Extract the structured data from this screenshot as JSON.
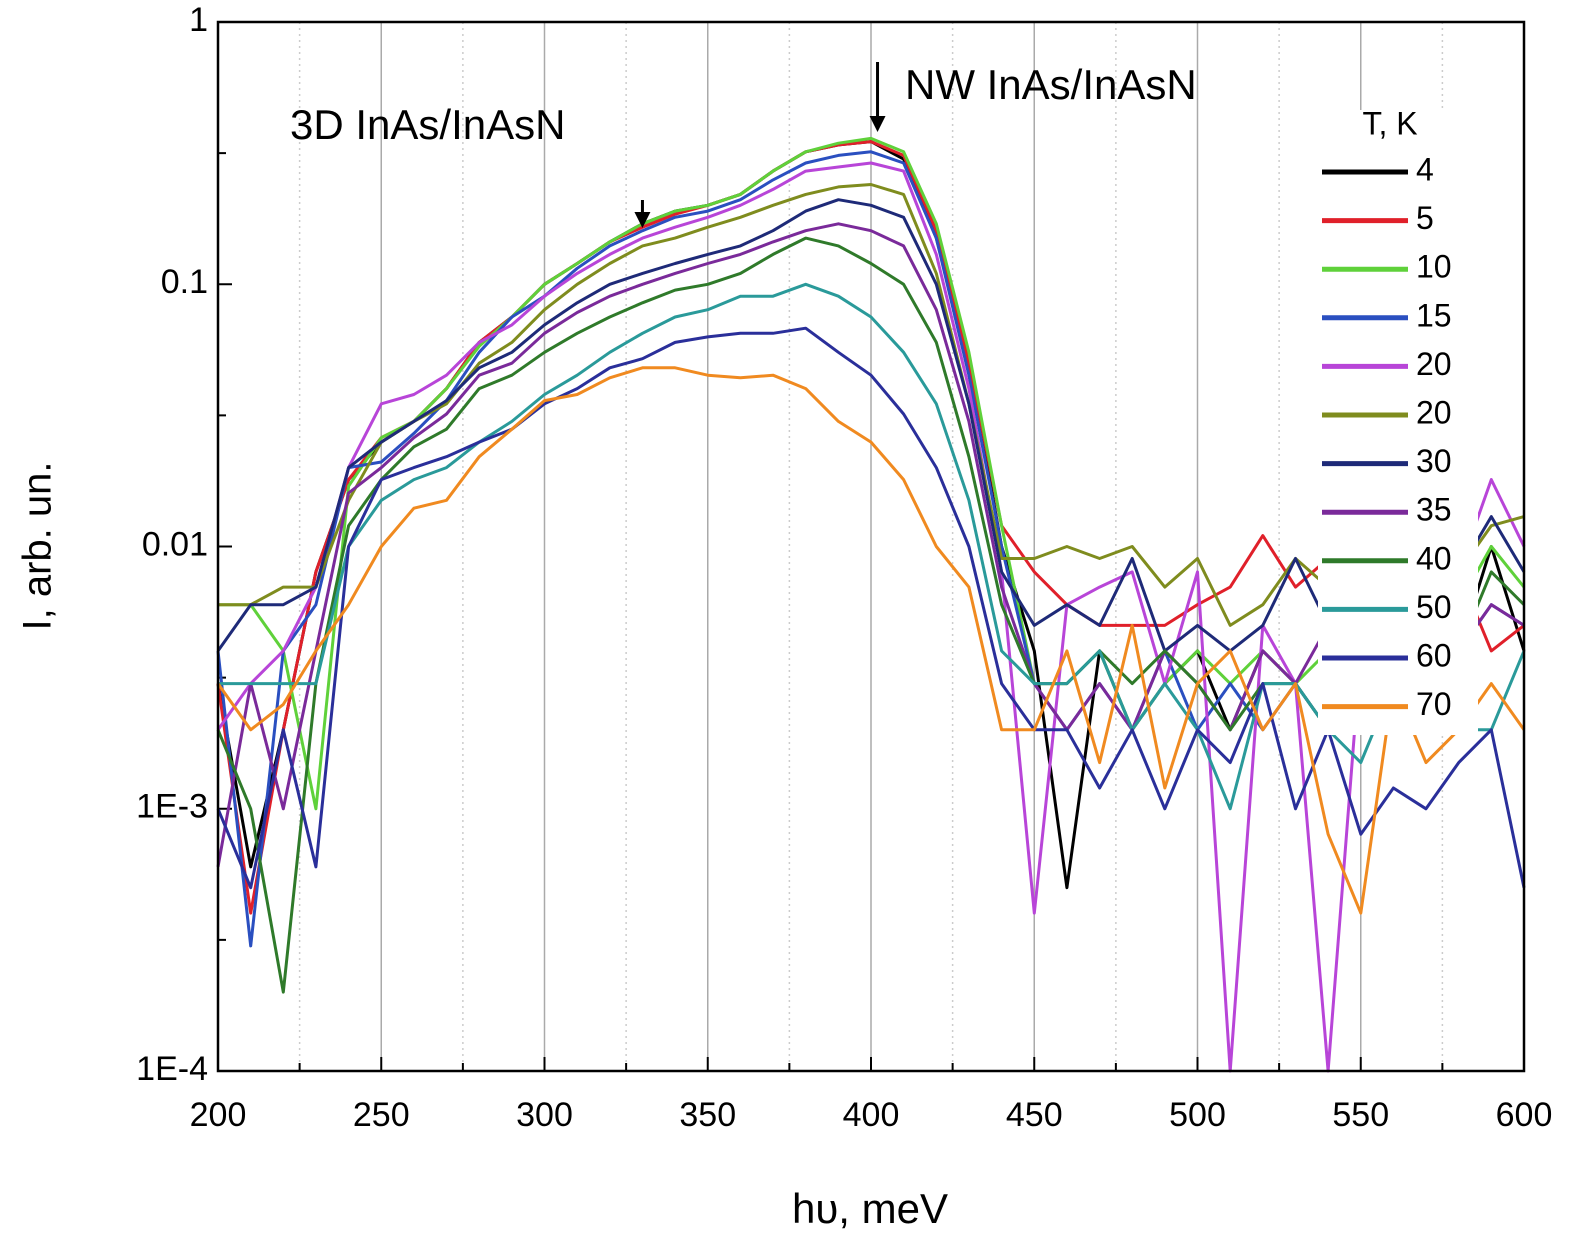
{
  "chart_data": {
    "type": "line",
    "x_label": "hυ, meV",
    "y_label": "I, arb. un.",
    "legend_title": "T, K",
    "annotations": [
      "3D InAs/InAsN",
      "NW InAs/InAsN"
    ],
    "log_y": true,
    "grid": true,
    "xlim": [
      200,
      600
    ],
    "xticks": [
      200,
      250,
      300,
      350,
      400,
      450,
      500,
      550,
      600
    ],
    "ylim": [
      0.0001,
      1
    ],
    "yticks": [
      {
        "value": 0.0001,
        "label": "1E-4"
      },
      {
        "value": 0.001,
        "label": "1E-3"
      },
      0.01,
      0.1,
      1
    ],
    "x": [
      200,
      210,
      220,
      230,
      240,
      250,
      260,
      270,
      280,
      290,
      300,
      310,
      320,
      330,
      340,
      350,
      360,
      370,
      380,
      390,
      400,
      410,
      420,
      430,
      440,
      450,
      460,
      470,
      480,
      490,
      500,
      510,
      520,
      530,
      540,
      550,
      560,
      570,
      580,
      590,
      600
    ],
    "series": [
      {
        "name": "4",
        "color": "#000000",
        "values": [
          0.003,
          0.0006,
          0.002,
          0.008,
          0.018,
          0.025,
          0.03,
          0.04,
          0.06,
          0.075,
          0.1,
          0.12,
          0.145,
          0.17,
          0.19,
          0.2,
          0.22,
          0.27,
          0.32,
          0.34,
          0.35,
          0.3,
          0.15,
          0.05,
          0.01,
          0.004,
          0.0005,
          0.004,
          0.002,
          0.003,
          0.004,
          0.002,
          0.004,
          0.003,
          0.002,
          0.005,
          0.003,
          0.006,
          0.004,
          0.01,
          0.004
        ]
      },
      {
        "name": "5",
        "color": "#e0202a",
        "values": [
          0.003,
          0.0004,
          0.002,
          0.008,
          0.018,
          0.026,
          0.03,
          0.04,
          0.06,
          0.075,
          0.1,
          0.12,
          0.145,
          0.165,
          0.185,
          0.2,
          0.22,
          0.27,
          0.32,
          0.34,
          0.35,
          0.31,
          0.16,
          0.05,
          0.012,
          0.008,
          0.006,
          0.005,
          0.005,
          0.005,
          0.006,
          0.007,
          0.011,
          0.007,
          0.009,
          0.005,
          0.006,
          0.009,
          0.008,
          0.004,
          0.005
        ]
      },
      {
        "name": "10",
        "color": "#5fd13a",
        "values": [
          0.006,
          0.006,
          0.004,
          0.001,
          0.017,
          0.026,
          0.03,
          0.04,
          0.058,
          0.075,
          0.1,
          0.12,
          0.145,
          0.17,
          0.19,
          0.2,
          0.22,
          0.27,
          0.32,
          0.345,
          0.36,
          0.32,
          0.17,
          0.055,
          0.012,
          0.003,
          0.003,
          0.004,
          0.002,
          0.003,
          0.004,
          0.003,
          0.004,
          0.003,
          0.004,
          0.006,
          0.005,
          0.005,
          0.006,
          0.01,
          0.007
        ]
      },
      {
        "name": "15",
        "color": "#2a4fc0",
        "values": [
          0.004,
          0.0003,
          0.004,
          0.006,
          0.02,
          0.021,
          0.027,
          0.036,
          0.055,
          0.075,
          0.09,
          0.115,
          0.14,
          0.16,
          0.18,
          0.19,
          0.21,
          0.25,
          0.29,
          0.31,
          0.32,
          0.29,
          0.15,
          0.045,
          0.01,
          0.003,
          0.002,
          0.003,
          0.002,
          0.004,
          0.002,
          0.003,
          0.002,
          0.003,
          0.002,
          0.003,
          0.002,
          0.003,
          0.004,
          0.006,
          0.005
        ]
      },
      {
        "name": "20",
        "color": "#b845d8",
        "values": [
          0.002,
          0.003,
          0.004,
          0.007,
          0.02,
          0.035,
          0.038,
          0.045,
          0.06,
          0.07,
          0.09,
          0.11,
          0.13,
          0.15,
          0.165,
          0.18,
          0.2,
          0.23,
          0.27,
          0.28,
          0.29,
          0.27,
          0.13,
          0.04,
          0.008,
          0.0004,
          0.006,
          0.007,
          0.008,
          0.003,
          0.008,
          0.0001,
          0.005,
          0.003,
          0.0001,
          0.004,
          0.003,
          0.005,
          0.008,
          0.018,
          0.01
        ]
      },
      {
        "name": "20",
        "color": "#7f8c1e",
        "values": [
          0.006,
          0.006,
          0.007,
          0.007,
          0.015,
          0.025,
          0.03,
          0.035,
          0.05,
          0.06,
          0.08,
          0.1,
          0.12,
          0.14,
          0.15,
          0.165,
          0.18,
          0.2,
          0.22,
          0.235,
          0.24,
          0.22,
          0.11,
          0.035,
          0.009,
          0.009,
          0.01,
          0.009,
          0.01,
          0.007,
          0.009,
          0.005,
          0.006,
          0.009,
          0.007,
          0.005,
          0.006,
          0.006,
          0.008,
          0.012,
          0.013
        ]
      },
      {
        "name": "30",
        "color": "#1e2a78",
        "values": [
          0.004,
          0.006,
          0.006,
          0.007,
          0.02,
          0.025,
          0.03,
          0.036,
          0.048,
          0.055,
          0.07,
          0.085,
          0.1,
          0.11,
          0.12,
          0.13,
          0.14,
          0.16,
          0.19,
          0.21,
          0.2,
          0.18,
          0.1,
          0.035,
          0.008,
          0.005,
          0.006,
          0.005,
          0.009,
          0.004,
          0.005,
          0.004,
          0.005,
          0.009,
          0.005,
          0.006,
          0.004,
          0.006,
          0.008,
          0.013,
          0.008
        ]
      },
      {
        "name": "35",
        "color": "#7a2a9a",
        "values": [
          0.0006,
          0.003,
          0.001,
          0.004,
          0.016,
          0.02,
          0.026,
          0.032,
          0.045,
          0.05,
          0.065,
          0.078,
          0.09,
          0.1,
          0.11,
          0.12,
          0.13,
          0.145,
          0.16,
          0.17,
          0.16,
          0.14,
          0.08,
          0.03,
          0.007,
          0.003,
          0.002,
          0.003,
          0.002,
          0.004,
          0.003,
          0.002,
          0.004,
          0.003,
          0.005,
          0.003,
          0.004,
          0.003,
          0.004,
          0.006,
          0.005
        ]
      },
      {
        "name": "40",
        "color": "#2f7a2a",
        "values": [
          0.002,
          0.001,
          0.0002,
          0.003,
          0.012,
          0.018,
          0.024,
          0.028,
          0.04,
          0.045,
          0.055,
          0.065,
          0.075,
          0.085,
          0.095,
          0.1,
          0.11,
          0.13,
          0.15,
          0.14,
          0.12,
          0.1,
          0.06,
          0.022,
          0.006,
          0.003,
          0.003,
          0.004,
          0.003,
          0.004,
          0.003,
          0.002,
          0.003,
          0.003,
          0.002,
          0.004,
          0.003,
          0.003,
          0.004,
          0.008,
          0.006
        ]
      },
      {
        "name": "50",
        "color": "#2a9a9a",
        "values": [
          0.003,
          0.003,
          0.003,
          0.003,
          0.01,
          0.015,
          0.018,
          0.02,
          0.025,
          0.03,
          0.038,
          0.045,
          0.055,
          0.065,
          0.075,
          0.08,
          0.09,
          0.09,
          0.1,
          0.09,
          0.075,
          0.055,
          0.035,
          0.015,
          0.004,
          0.003,
          0.003,
          0.004,
          0.002,
          0.003,
          0.002,
          0.001,
          0.003,
          0.003,
          0.002,
          0.0015,
          0.003,
          0.002,
          0.002,
          0.002,
          0.004
        ]
      },
      {
        "name": "60",
        "color": "#2a2f9a",
        "values": [
          0.001,
          0.0005,
          0.002,
          0.0006,
          0.01,
          0.018,
          0.02,
          0.022,
          0.025,
          0.028,
          0.035,
          0.04,
          0.048,
          0.052,
          0.06,
          0.063,
          0.065,
          0.065,
          0.068,
          0.055,
          0.045,
          0.032,
          0.02,
          0.01,
          0.003,
          0.002,
          0.002,
          0.0012,
          0.002,
          0.001,
          0.002,
          0.0015,
          0.003,
          0.001,
          0.002,
          0.0008,
          0.0012,
          0.001,
          0.0015,
          0.002,
          0.0005
        ]
      },
      {
        "name": "70",
        "color": "#f08a20",
        "values": [
          0.003,
          0.002,
          0.0025,
          0.004,
          0.006,
          0.01,
          0.014,
          0.015,
          0.022,
          0.028,
          0.036,
          0.038,
          0.044,
          0.048,
          0.048,
          0.045,
          0.044,
          0.045,
          0.04,
          0.03,
          0.025,
          0.018,
          0.01,
          0.007,
          0.002,
          0.002,
          0.004,
          0.0015,
          0.005,
          0.0012,
          0.003,
          0.004,
          0.002,
          0.003,
          0.0008,
          0.0004,
          0.003,
          0.0015,
          0.002,
          0.003,
          0.002
        ]
      }
    ]
  }
}
